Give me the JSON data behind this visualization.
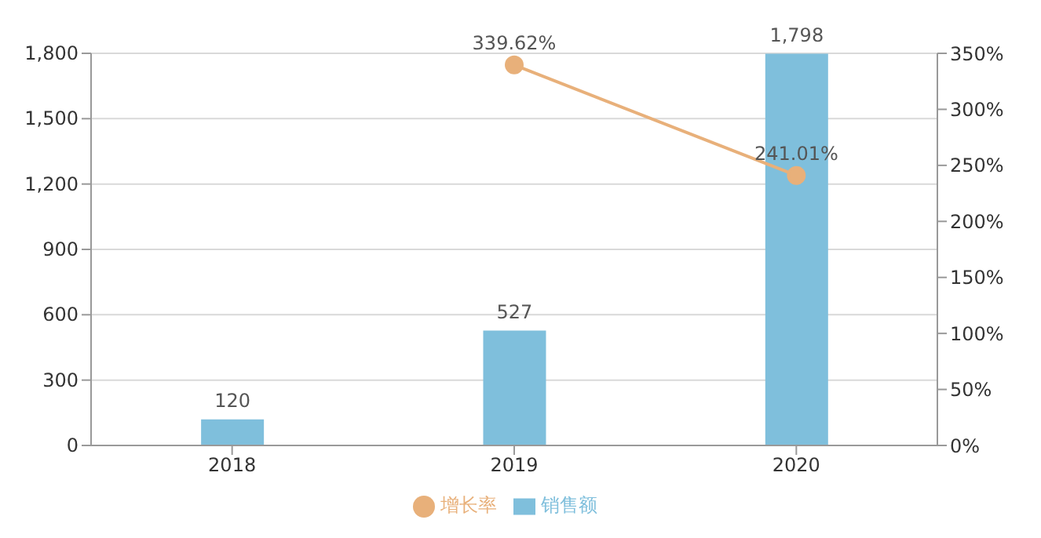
{
  "chart_data": {
    "type": "bar",
    "categories": [
      "2018",
      "2019",
      "2020"
    ],
    "series": [
      {
        "name": "销售额",
        "color": "#7fbfdc",
        "values": [
          120,
          527,
          1798
        ],
        "value_labels": [
          "120",
          "527",
          "1,798"
        ]
      },
      {
        "name": "增长率",
        "type": "line",
        "axis": "y2",
        "color": "#e8b07a",
        "values": [
          null,
          339.62,
          241.01
        ],
        "value_labels": [
          null,
          "339.62%",
          "241.01%"
        ]
      }
    ],
    "ylim": [
      0,
      1800
    ],
    "yticks": [
      0,
      {
        "value": 300,
        "label": "300"
      },
      {
        "value": 600,
        "label": "600"
      },
      {
        "value": 900,
        "label": "900"
      },
      {
        "value": 1200,
        "label": "1,200"
      },
      {
        "value": 1500,
        "label": "1,500"
      },
      {
        "value": 1800,
        "label": "1,800"
      }
    ],
    "y2lim": [
      0,
      350
    ],
    "y2ticks": [
      {
        "value": 0,
        "label": "0%"
      },
      {
        "value": 50,
        "label": "50%"
      },
      {
        "value": 100,
        "label": "100%"
      },
      {
        "value": 150,
        "label": "150%"
      },
      {
        "value": 200,
        "label": "200%"
      },
      {
        "value": 250,
        "label": "250%"
      },
      {
        "value": 300,
        "label": "300%"
      },
      {
        "value": 350,
        "label": "350%"
      }
    ],
    "grid": "y",
    "legend": "bottom",
    "marker": "circle"
  }
}
